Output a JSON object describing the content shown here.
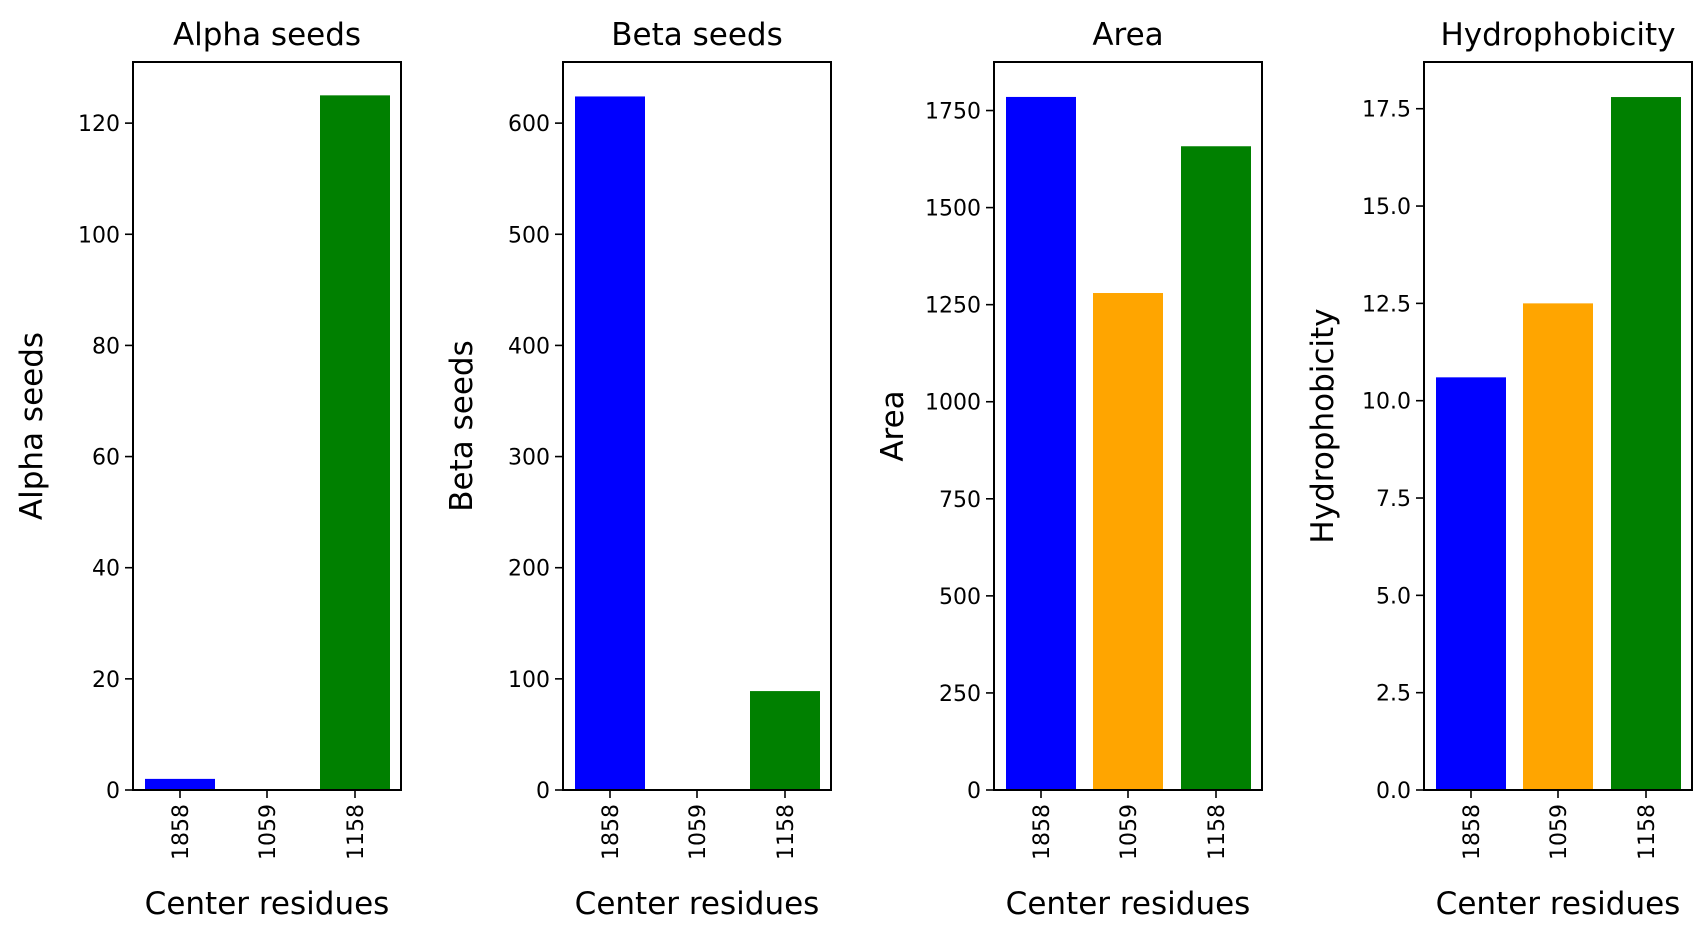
{
  "chart_data": [
    {
      "type": "bar",
      "title": "Alpha seeds",
      "xlabel": "Center residues",
      "ylabel": "Alpha seeds",
      "categories": [
        "1858",
        "1059",
        "1158"
      ],
      "values": [
        2,
        0,
        125
      ],
      "colors": [
        "#0000ff",
        "#ffa500",
        "#008000"
      ],
      "ylim": [
        0,
        131
      ],
      "yticks": [
        0,
        20,
        40,
        60,
        80,
        100,
        120
      ],
      "yticklabels": [
        "0",
        "20",
        "40",
        "60",
        "80",
        "100",
        "120"
      ]
    },
    {
      "type": "bar",
      "title": "Beta seeds",
      "xlabel": "Center residues",
      "ylabel": "Beta seeds",
      "categories": [
        "1858",
        "1059",
        "1158"
      ],
      "values": [
        624,
        0,
        89
      ],
      "colors": [
        "#0000ff",
        "#ffa500",
        "#008000"
      ],
      "ylim": [
        0,
        655
      ],
      "yticks": [
        0,
        100,
        200,
        300,
        400,
        500,
        600
      ],
      "yticklabels": [
        "0",
        "100",
        "200",
        "300",
        "400",
        "500",
        "600"
      ]
    },
    {
      "type": "bar",
      "title": "Area",
      "xlabel": "Center residues",
      "ylabel": "Area",
      "categories": [
        "1858",
        "1059",
        "1158"
      ],
      "values": [
        1785,
        1280,
        1658
      ],
      "colors": [
        "#0000ff",
        "#ffa500",
        "#008000"
      ],
      "ylim": [
        0,
        1875
      ],
      "yticks": [
        0,
        250,
        500,
        750,
        1000,
        1250,
        1500,
        1750
      ],
      "yticklabels": [
        "0",
        "250",
        "500",
        "750",
        "1000",
        "1250",
        "1500",
        "1750"
      ]
    },
    {
      "type": "bar",
      "title": "Hydrophobicity",
      "xlabel": "Center residues",
      "ylabel": "Hydrophobicity",
      "categories": [
        "1858",
        "1059",
        "1158"
      ],
      "values": [
        10.6,
        12.5,
        17.8
      ],
      "colors": [
        "#0000ff",
        "#ffa500",
        "#008000"
      ],
      "ylim": [
        0,
        18.7
      ],
      "yticks": [
        0,
        2.5,
        5.0,
        7.5,
        10.0,
        12.5,
        15.0,
        17.5
      ],
      "yticklabels": [
        "0.0",
        "2.5",
        "5.0",
        "7.5",
        "10.0",
        "12.5",
        "15.0",
        "17.5"
      ]
    }
  ]
}
